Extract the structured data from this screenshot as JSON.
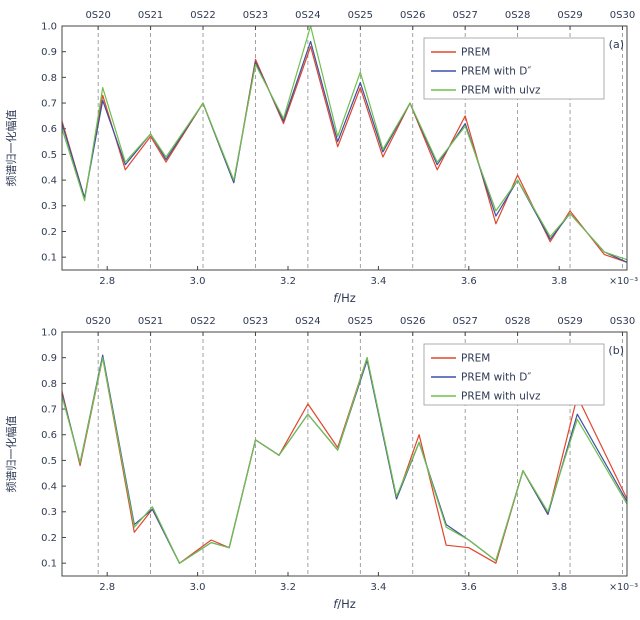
{
  "colors": {
    "text": "#2e3a54",
    "axis": "#444444",
    "grid": "#8c8c8c",
    "legend_border": "#999999"
  },
  "chart_data": [
    {
      "type": "line",
      "panel_label": "(a)",
      "xlabel_parts": [
        {
          "text": "f",
          "italic": true
        },
        {
          "text": "/Hz",
          "italic": false
        }
      ],
      "ylabel": "频谱归一化幅值",
      "x_scale_note": "×10⁻³",
      "xlim": [
        2.7,
        3.95
      ],
      "ylim": [
        0.05,
        1.0
      ],
      "xticks": [
        2.8,
        3.0,
        3.2,
        3.4,
        3.6,
        3.8
      ],
      "yticks": [
        0.1,
        0.2,
        0.3,
        0.4,
        0.5,
        0.6,
        0.7,
        0.8,
        0.9,
        1.0
      ],
      "mode_labels": [
        "0S20",
        "0S21",
        "0S22",
        "0S23",
        "0S24",
        "0S25",
        "0S26",
        "0S27",
        "0S28",
        "0S29",
        "0S30"
      ],
      "mode_positions": [
        2.78,
        2.896,
        3.012,
        3.128,
        3.244,
        3.36,
        3.476,
        3.592,
        3.708,
        3.824,
        3.94
      ],
      "x": [
        2.7,
        2.75,
        2.79,
        2.84,
        2.896,
        2.93,
        3.012,
        3.08,
        3.128,
        3.19,
        3.25,
        3.31,
        3.36,
        3.41,
        3.47,
        3.53,
        3.592,
        3.66,
        3.708,
        3.78,
        3.824,
        3.9,
        3.95
      ],
      "series": [
        {
          "name": "PREM",
          "color": "#e0462e",
          "y": [
            0.63,
            0.33,
            0.73,
            0.44,
            0.57,
            0.47,
            0.7,
            0.39,
            0.87,
            0.62,
            0.92,
            0.53,
            0.76,
            0.49,
            0.7,
            0.44,
            0.65,
            0.23,
            0.42,
            0.16,
            0.28,
            0.11,
            0.08
          ]
        },
        {
          "name": "PREM with D″",
          "color": "#3c50a5",
          "y": [
            0.62,
            0.33,
            0.71,
            0.46,
            0.58,
            0.48,
            0.7,
            0.39,
            0.86,
            0.63,
            0.94,
            0.55,
            0.78,
            0.51,
            0.7,
            0.46,
            0.62,
            0.26,
            0.4,
            0.17,
            0.27,
            0.12,
            0.08
          ]
        },
        {
          "name": "PREM with ulvz",
          "color": "#6fc04c",
          "y": [
            0.6,
            0.32,
            0.76,
            0.47,
            0.58,
            0.49,
            0.7,
            0.4,
            0.85,
            0.64,
            1.0,
            0.57,
            0.82,
            0.52,
            0.7,
            0.47,
            0.61,
            0.28,
            0.4,
            0.18,
            0.27,
            0.12,
            0.09
          ]
        }
      ]
    },
    {
      "type": "line",
      "panel_label": "(b)",
      "xlabel_parts": [
        {
          "text": "f",
          "italic": true
        },
        {
          "text": "/Hz",
          "italic": false
        }
      ],
      "ylabel": "频谱归一化幅值",
      "x_scale_note": "×10⁻³",
      "xlim": [
        2.7,
        3.95
      ],
      "ylim": [
        0.05,
        1.0
      ],
      "xticks": [
        2.8,
        3.0,
        3.2,
        3.4,
        3.6,
        3.8
      ],
      "yticks": [
        0.1,
        0.2,
        0.3,
        0.4,
        0.5,
        0.6,
        0.7,
        0.8,
        0.9,
        1.0
      ],
      "mode_labels": [
        "0S20",
        "0S21",
        "0S22",
        "0S23",
        "0S24",
        "0S25",
        "0S26",
        "0S27",
        "0S28",
        "0S29",
        "0S30"
      ],
      "mode_positions": [
        2.78,
        2.896,
        3.012,
        3.128,
        3.244,
        3.36,
        3.476,
        3.592,
        3.708,
        3.824,
        3.94
      ],
      "x": [
        2.7,
        2.74,
        2.79,
        2.86,
        2.9,
        2.96,
        3.03,
        3.07,
        3.128,
        3.18,
        3.244,
        3.31,
        3.375,
        3.44,
        3.49,
        3.55,
        3.6,
        3.66,
        3.72,
        3.775,
        3.84,
        3.95
      ],
      "series": [
        {
          "name": "PREM",
          "color": "#e0462e",
          "y": [
            0.77,
            0.48,
            0.9,
            0.22,
            0.31,
            0.1,
            0.19,
            0.16,
            0.58,
            0.52,
            0.72,
            0.55,
            0.9,
            0.35,
            0.6,
            0.17,
            0.16,
            0.1,
            0.46,
            0.29,
            0.75,
            0.35
          ]
        },
        {
          "name": "PREM with D″",
          "color": "#3c50a5",
          "y": [
            0.76,
            0.49,
            0.91,
            0.25,
            0.31,
            0.1,
            0.18,
            0.16,
            0.58,
            0.52,
            0.68,
            0.54,
            0.89,
            0.35,
            0.57,
            0.25,
            0.19,
            0.11,
            0.46,
            0.29,
            0.68,
            0.34
          ]
        },
        {
          "name": "PREM with ulvz",
          "color": "#6fc04c",
          "y": [
            0.75,
            0.49,
            0.9,
            0.24,
            0.32,
            0.1,
            0.18,
            0.16,
            0.58,
            0.52,
            0.68,
            0.54,
            0.9,
            0.36,
            0.57,
            0.24,
            0.19,
            0.11,
            0.46,
            0.3,
            0.66,
            0.33
          ]
        }
      ]
    }
  ]
}
